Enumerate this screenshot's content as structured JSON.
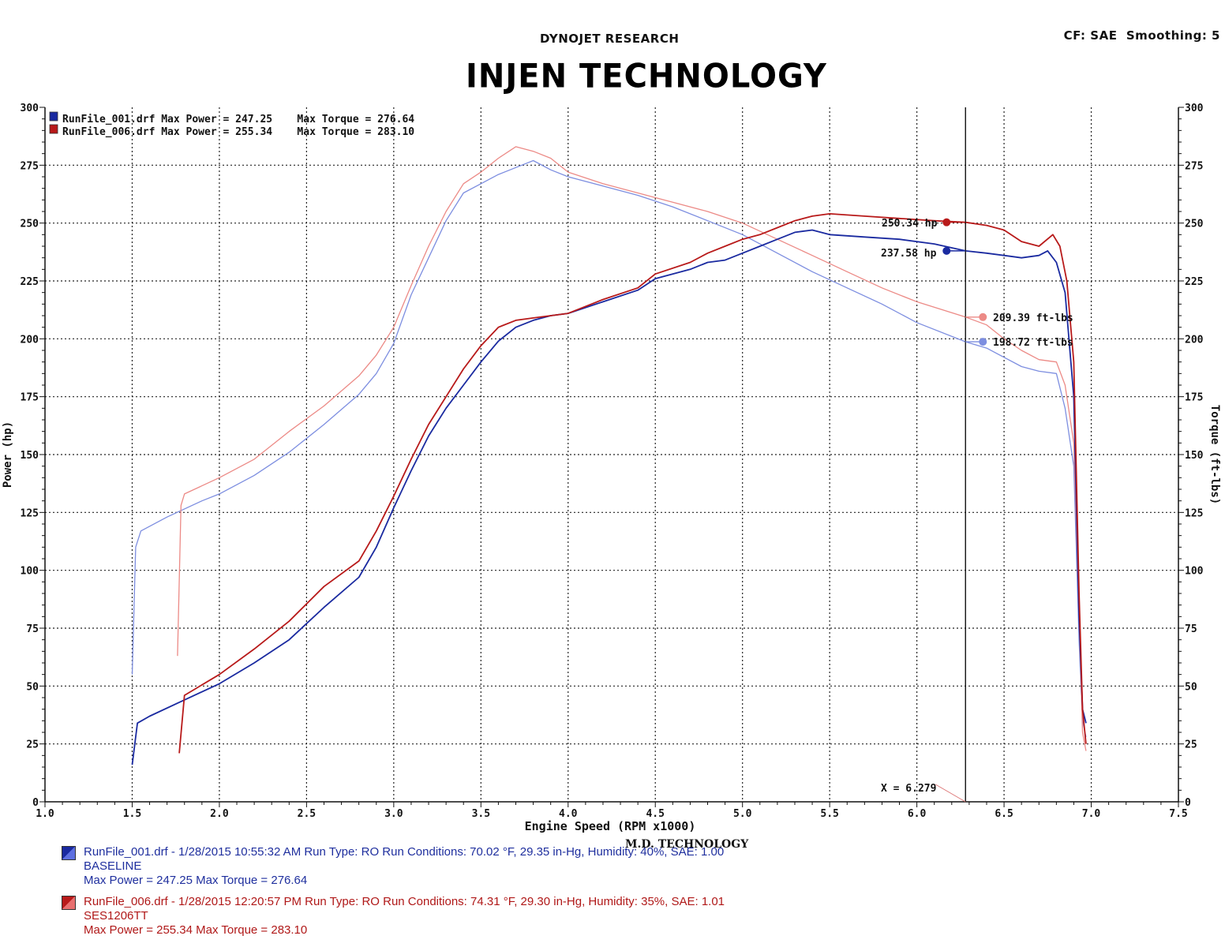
{
  "header": {
    "company": "DYNOJET RESEARCH",
    "settings": "CF: SAE  Smoothing: 5",
    "brand_title": "INJEN TECHNOLOGY"
  },
  "legend_box": {
    "lines": [
      "RunFile_001.drf Max Power = 247.25    Max Torque = 276.64",
      "RunFile_006.drf Max Power = 255.34    Max Torque = 283.10"
    ]
  },
  "cursor": {
    "x_label": "X = 6.279",
    "readouts": [
      "250.34 hp",
      "237.58 hp",
      "209.39 ft-lbs",
      "198.72 ft-lbs"
    ]
  },
  "footer": {
    "run1": {
      "line1": "RunFile_001.drf - 1/28/2015 10:55:32 AM  Run Type: RO  Run Conditions: 70.02 °F, 29.35 in-Hg,  Humidity:  40%, SAE: 1.00",
      "line2": "BASELINE",
      "line3": "Max Power = 247.25  Max Torque = 276.64"
    },
    "run2": {
      "line1": "RunFile_006.drf - 1/28/2015 12:20:57 PM  Run Type: RO  Run Conditions: 74.31 °F, 29.30 in-Hg,  Humidity:  35%, SAE: 1.01",
      "line2": "SES1206TT",
      "line3": "Max Power = 255.34  Max Torque = 283.10"
    },
    "watermark": "M.D. TECHNOLOGY"
  },
  "colors": {
    "baseline_power": "#1a2aa0",
    "baseline_torque": "#7d8ee0",
    "ses_power": "#b81a1a",
    "ses_torque": "#ec8a86"
  },
  "chart_data": {
    "type": "line",
    "xlabel": "Engine Speed (RPM x1000)",
    "ylabel": "Power (hp)",
    "y2label": "Torque (ft-lbs)",
    "xlim": [
      1.0,
      7.5
    ],
    "ylim": [
      0,
      300
    ],
    "y2lim": [
      0,
      300
    ],
    "xticks": [
      "1.0",
      "1.5",
      "2.0",
      "2.5",
      "3.0",
      "3.5",
      "4.0",
      "4.5",
      "5.0",
      "5.5",
      "6.0",
      "6.5",
      "7.0",
      "7.5"
    ],
    "yticks": [
      "0",
      "25",
      "50",
      "75",
      "100",
      "125",
      "150",
      "175",
      "200",
      "225",
      "250",
      "275",
      "300"
    ],
    "grid": true,
    "cursor_x": 6.279,
    "series": [
      {
        "name": "RunFile_001.drf",
        "quantity": "power",
        "x": [
          1.5,
          1.53,
          1.6,
          1.8,
          2.0,
          2.2,
          2.4,
          2.6,
          2.8,
          2.9,
          3.0,
          3.1,
          3.2,
          3.3,
          3.4,
          3.5,
          3.6,
          3.7,
          3.8,
          3.9,
          4.0,
          4.2,
          4.4,
          4.5,
          4.7,
          4.8,
          4.9,
          5.0,
          5.1,
          5.2,
          5.3,
          5.4,
          5.5,
          5.7,
          5.9,
          6.1,
          6.279,
          6.4,
          6.5,
          6.6,
          6.7,
          6.75,
          6.8,
          6.85,
          6.9,
          6.93,
          6.95,
          6.97
        ],
        "y": [
          16,
          34,
          37,
          44,
          51,
          60,
          70,
          84,
          97,
          110,
          127,
          143,
          158,
          170,
          180,
          190,
          199,
          205,
          208,
          210,
          211,
          216,
          221,
          226,
          230,
          233,
          234,
          237,
          240,
          243,
          246,
          247,
          245,
          244,
          243,
          241,
          238,
          237,
          236,
          235,
          236,
          238,
          233,
          220,
          175,
          80,
          40,
          34
        ]
      },
      {
        "name": "RunFile_001.drf",
        "quantity": "torque",
        "x": [
          1.5,
          1.52,
          1.55,
          1.7,
          1.9,
          2.0,
          2.2,
          2.4,
          2.6,
          2.8,
          2.9,
          3.0,
          3.1,
          3.2,
          3.3,
          3.4,
          3.5,
          3.6,
          3.7,
          3.8,
          3.9,
          4.0,
          4.2,
          4.4,
          4.6,
          4.8,
          5.0,
          5.2,
          5.4,
          5.6,
          5.8,
          6.0,
          6.279,
          6.4,
          6.5,
          6.6,
          6.7,
          6.8,
          6.85,
          6.9,
          6.93,
          6.95,
          6.97
        ],
        "y": [
          55,
          110,
          117,
          123,
          130,
          133,
          141,
          151,
          163,
          176,
          185,
          198,
          219,
          235,
          251,
          263,
          267,
          271,
          274,
          277,
          273,
          270,
          266,
          262,
          257,
          251,
          245,
          237,
          229,
          222,
          215,
          207,
          198.72,
          196,
          192,
          188,
          186,
          185,
          170,
          145,
          70,
          35,
          28
        ]
      },
      {
        "name": "RunFile_006.drf",
        "quantity": "power",
        "x": [
          1.77,
          1.8,
          2.0,
          2.2,
          2.4,
          2.6,
          2.8,
          2.9,
          3.0,
          3.1,
          3.2,
          3.3,
          3.4,
          3.5,
          3.6,
          3.7,
          3.8,
          3.9,
          4.0,
          4.2,
          4.4,
          4.5,
          4.7,
          4.8,
          4.9,
          5.0,
          5.1,
          5.2,
          5.3,
          5.4,
          5.5,
          5.7,
          5.9,
          6.1,
          6.279,
          6.4,
          6.5,
          6.6,
          6.7,
          6.78,
          6.82,
          6.86,
          6.9,
          6.93,
          6.95,
          6.97
        ],
        "y": [
          21,
          46,
          55,
          66,
          78,
          93,
          104,
          117,
          132,
          148,
          163,
          175,
          187,
          197,
          205,
          208,
          209,
          210,
          211,
          217,
          222,
          228,
          233,
          237,
          240,
          243,
          245,
          248,
          251,
          253,
          254,
          253,
          252,
          251,
          250.34,
          249,
          247,
          242,
          240,
          245,
          240,
          225,
          190,
          90,
          40,
          25
        ]
      },
      {
        "name": "RunFile_006.drf",
        "quantity": "torque",
        "x": [
          1.76,
          1.78,
          1.8,
          2.0,
          2.2,
          2.4,
          2.6,
          2.8,
          2.9,
          3.0,
          3.1,
          3.2,
          3.3,
          3.4,
          3.5,
          3.6,
          3.7,
          3.8,
          3.9,
          4.0,
          4.2,
          4.4,
          4.6,
          4.8,
          5.0,
          5.2,
          5.4,
          5.6,
          5.8,
          6.0,
          6.279,
          6.4,
          6.5,
          6.6,
          6.7,
          6.8,
          6.85,
          6.9,
          6.93,
          6.95,
          6.97
        ],
        "y": [
          63,
          128,
          133,
          140,
          148,
          160,
          171,
          184,
          193,
          205,
          223,
          240,
          255,
          267,
          272,
          278,
          283,
          281,
          278,
          272,
          267,
          263,
          259,
          255,
          250,
          243,
          236,
          229,
          222,
          216,
          209.39,
          206,
          200,
          195,
          191,
          190,
          180,
          155,
          80,
          30,
          22
        ]
      }
    ]
  }
}
